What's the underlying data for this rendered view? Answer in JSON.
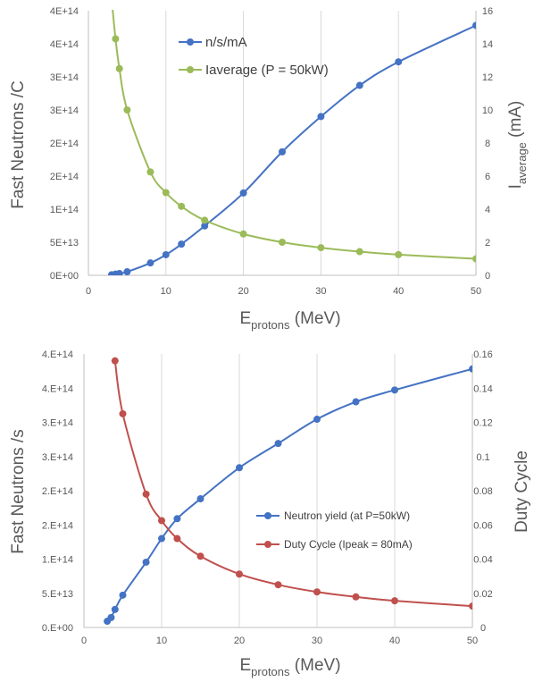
{
  "chart_data": [
    {
      "type": "line",
      "xlabel": "E",
      "xlabel_sub": "protons",
      "xlabel_tail": " (MeV)",
      "ylabel": "Fast Neutrons /C",
      "y2label": "I",
      "y2label_sub": "average",
      "y2label_tail": " (mA)",
      "xlim": [
        0,
        50
      ],
      "ylim": [
        0,
        450000000000000
      ],
      "y2lim": [
        0,
        16
      ],
      "x_ticks": [
        "0",
        "10",
        "20",
        "30",
        "40",
        "50"
      ],
      "y_ticks": [
        "0E+00",
        "5E+13",
        "1E+14",
        "2E+14",
        "2E+14",
        "3E+14",
        "3E+14",
        "4E+14",
        "4E+14"
      ],
      "y2_ticks": [
        "0",
        "2",
        "4",
        "6",
        "8",
        "10",
        "12",
        "14",
        "16"
      ],
      "legend_position": "top-center",
      "grid": "vertical",
      "series": [
        {
          "name": "n/s/mA",
          "axis": "left",
          "color": "#4472c4",
          "x": [
            3,
            3.5,
            4,
            5,
            8,
            10,
            12,
            15,
            20,
            25,
            30,
            35,
            40,
            50
          ],
          "y": [
            1000000000000,
            2000000000000,
            3000000000000,
            6000000000000,
            21000000000000,
            35000000000000,
            53000000000000,
            84000000000000,
            140000000000000,
            210000000000000,
            270000000000000,
            323000000000000,
            363000000000000,
            425000000000000
          ]
        },
        {
          "name": "Iaverage (P = 50kW)",
          "axis": "right",
          "color": "#9bbb59",
          "x": [
            3,
            3.5,
            4,
            5,
            8,
            10,
            12,
            15,
            20,
            25,
            30,
            35,
            40,
            50
          ],
          "y": [
            16.7,
            14.3,
            12.5,
            10,
            6.25,
            5,
            4.17,
            3.33,
            2.5,
            2,
            1.67,
            1.43,
            1.25,
            1
          ]
        }
      ]
    },
    {
      "type": "line",
      "xlabel": "E",
      "xlabel_sub": "protons",
      "xlabel_tail": " (MeV)",
      "ylabel": "Fast Neutrons /s",
      "y2label": "Duty Cycle",
      "xlim": [
        0,
        50
      ],
      "ylim": [
        0,
        440000000000000
      ],
      "y2lim": [
        0,
        0.16
      ],
      "x_ticks": [
        "0",
        "10",
        "20",
        "30",
        "40",
        "50"
      ],
      "y_ticks": [
        "0.E+00",
        "5.E+13",
        "1.E+14",
        "2.E+14",
        "2.E+14",
        "3.E+14",
        "3.E+14",
        "4.E+14",
        "4.E+14"
      ],
      "y2_ticks": [
        "0",
        "0.02",
        "0.04",
        "0.06",
        "0.08",
        "0.1",
        "0.12",
        "0.14",
        "0.16"
      ],
      "legend_position": "center-right",
      "grid": "vertical",
      "series": [
        {
          "name": "Neutron yield (at P=50kW)",
          "axis": "left",
          "color": "#4472c4",
          "x": [
            3,
            3.5,
            4,
            5,
            8,
            10,
            12,
            15,
            20,
            25,
            30,
            35,
            40,
            50
          ],
          "y": [
            10000000000000,
            16000000000000,
            29000000000000,
            52000000000000,
            105000000000000,
            143000000000000,
            175000000000000,
            207000000000000,
            257000000000000,
            296000000000000,
            335000000000000,
            363000000000000,
            382000000000000,
            416000000000000
          ]
        },
        {
          "name": "Duty Cycle (Ipeak = 80mA)",
          "axis": "right",
          "color": "#c0504d",
          "x": [
            4,
            5,
            8,
            10,
            12,
            15,
            20,
            25,
            30,
            35,
            40,
            50
          ],
          "y": [
            0.156,
            0.125,
            0.078,
            0.0625,
            0.052,
            0.0417,
            0.03125,
            0.025,
            0.0208,
            0.0179,
            0.0156,
            0.0125
          ]
        }
      ]
    }
  ]
}
